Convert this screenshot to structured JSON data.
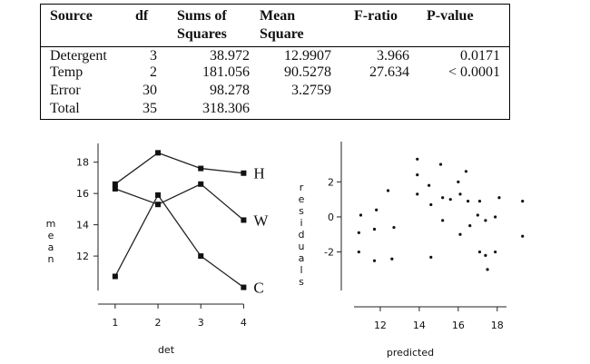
{
  "anova": {
    "headers": {
      "source": "Source",
      "df": "df",
      "ss_1": "Sums of",
      "ss_2": "Squares",
      "ms_1": "Mean",
      "ms_2": "Square",
      "f": "F-ratio",
      "p": "P-value"
    },
    "rows": [
      {
        "source": "Detergent",
        "df": "3",
        "ss": "38.972",
        "ms": "12.9907",
        "f": "3.966",
        "p": "0.0171"
      },
      {
        "source": "Temp",
        "df": "2",
        "ss": "181.056",
        "ms": "90.5278",
        "f": "27.634",
        "p": "< 0.0001"
      },
      {
        "source": "Error",
        "df": "30",
        "ss": "98.278",
        "ms": "3.2759",
        "f": "",
        "p": ""
      },
      {
        "source": "Total",
        "df": "35",
        "ss": "318.306",
        "ms": "",
        "f": "",
        "p": ""
      }
    ]
  },
  "chart_data": [
    {
      "type": "line",
      "xlabel": "det",
      "ylabel": "mean",
      "x": [
        1,
        2,
        3,
        4
      ],
      "xticks": [
        "1",
        "2",
        "3",
        "4"
      ],
      "yticks": [
        "12",
        "14",
        "16",
        "18"
      ],
      "ylim": [
        9.8,
        19.2
      ],
      "series": [
        {
          "name": "H",
          "values": [
            16.6,
            18.6,
            17.6,
            17.3
          ]
        },
        {
          "name": "W",
          "values": [
            16.3,
            15.3,
            16.6,
            14.3
          ]
        },
        {
          "name": "C",
          "values": [
            10.7,
            15.9,
            12.0,
            10.0
          ]
        }
      ]
    },
    {
      "type": "scatter",
      "xlabel": "predicted",
      "ylabel": "residuals",
      "xticks": [
        "12",
        "14",
        "16",
        "18"
      ],
      "yticks": [
        "2",
        "0",
        "-2"
      ],
      "xlim": [
        10.0,
        19.5
      ],
      "ylim": [
        -4.2,
        4.3
      ],
      "points": [
        [
          10.9,
          -0.9
        ],
        [
          10.9,
          -2.0
        ],
        [
          11.0,
          0.1
        ],
        [
          11.7,
          -2.5
        ],
        [
          11.7,
          -0.7
        ],
        [
          11.8,
          0.4
        ],
        [
          12.4,
          1.5
        ],
        [
          12.6,
          -2.4
        ],
        [
          12.7,
          -0.6
        ],
        [
          13.9,
          3.3
        ],
        [
          13.9,
          2.4
        ],
        [
          13.9,
          1.3
        ],
        [
          14.5,
          1.8
        ],
        [
          14.6,
          0.7
        ],
        [
          14.6,
          -2.3
        ],
        [
          15.1,
          3.0
        ],
        [
          15.2,
          1.1
        ],
        [
          15.2,
          -0.2
        ],
        [
          15.6,
          1.0
        ],
        [
          16.0,
          2.0
        ],
        [
          16.1,
          1.3
        ],
        [
          16.1,
          -1.0
        ],
        [
          16.4,
          2.6
        ],
        [
          16.5,
          0.9
        ],
        [
          16.6,
          -0.5
        ],
        [
          17.0,
          0.1
        ],
        [
          17.1,
          0.9
        ],
        [
          17.1,
          -2.0
        ],
        [
          17.4,
          -0.2
        ],
        [
          17.4,
          -2.2
        ],
        [
          17.5,
          -3.0
        ],
        [
          17.9,
          -2.0
        ],
        [
          17.9,
          0.0
        ],
        [
          18.1,
          1.1
        ],
        [
          19.3,
          0.9
        ],
        [
          19.3,
          -1.1
        ]
      ]
    }
  ]
}
